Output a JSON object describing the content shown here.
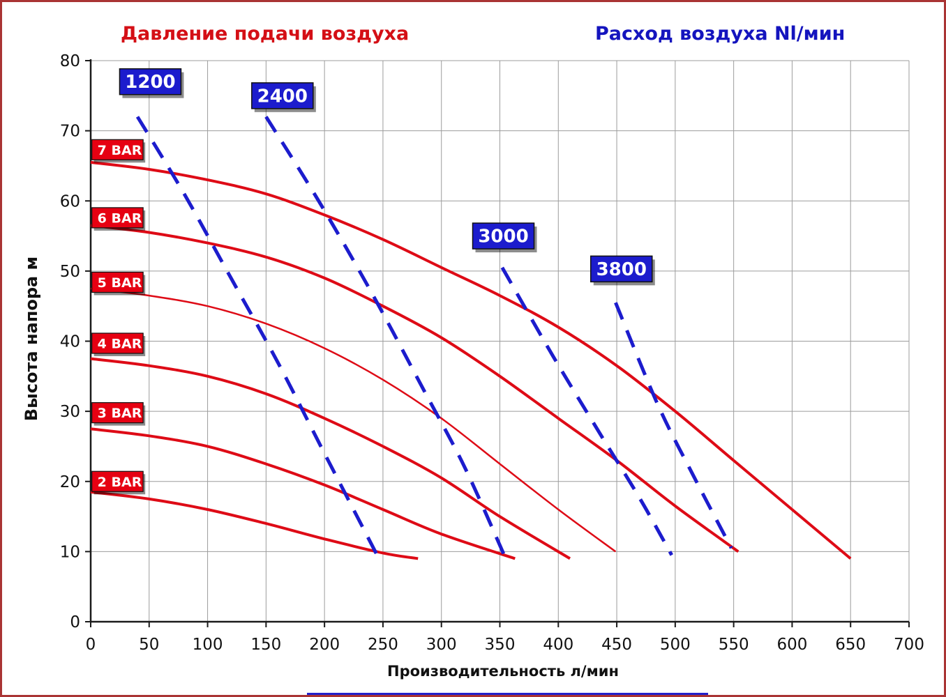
{
  "chart_data": {
    "type": "line",
    "title_left": "Давление подачи воздуха",
    "title_right": "Расход воздуха Nl/мин",
    "xlabel": "Производительность л/мин",
    "ylabel": "Высота напора м",
    "xlim": [
      0,
      700
    ],
    "ylim": [
      0,
      80
    ],
    "x_ticks": [
      0,
      50,
      100,
      150,
      200,
      250,
      300,
      350,
      400,
      450,
      500,
      550,
      600,
      650,
      700
    ],
    "y_ticks": [
      0,
      10,
      20,
      30,
      40,
      50,
      60,
      70,
      80
    ],
    "grid": true,
    "legend": "none",
    "colors": {
      "curve_red": "#de0b16",
      "curve_blue": "#1c1ccd",
      "pressure_label_bg": "#e60012",
      "flow_label_bg": "#1c1ccd",
      "label_text": "#ffffff",
      "grid": "#9c9c9c",
      "axis": "#1a1a1a",
      "title_red": "#d40f16",
      "title_blue": "#1414be"
    },
    "series": [
      {
        "name": "7 BAR",
        "group": "pressure",
        "style": "solid",
        "width": 4,
        "points": [
          [
            0,
            65.5
          ],
          [
            50,
            64.5
          ],
          [
            100,
            63
          ],
          [
            150,
            61
          ],
          [
            200,
            58
          ],
          [
            250,
            54.5
          ],
          [
            300,
            50.5
          ],
          [
            350,
            46.5
          ],
          [
            400,
            42
          ],
          [
            450,
            36.5
          ],
          [
            500,
            30
          ],
          [
            550,
            23
          ],
          [
            600,
            16
          ],
          [
            650,
            9
          ]
        ]
      },
      {
        "name": "6 BAR",
        "group": "pressure",
        "style": "solid",
        "width": 4,
        "points": [
          [
            0,
            56.5
          ],
          [
            50,
            55.5
          ],
          [
            100,
            54
          ],
          [
            150,
            52
          ],
          [
            200,
            49
          ],
          [
            250,
            45
          ],
          [
            300,
            40.5
          ],
          [
            350,
            35
          ],
          [
            400,
            29
          ],
          [
            450,
            23
          ],
          [
            500,
            16.5
          ],
          [
            554,
            10
          ]
        ]
      },
      {
        "name": "5 BAR",
        "group": "pressure",
        "style": "solid",
        "width": 2.5,
        "points": [
          [
            0,
            47.5
          ],
          [
            50,
            46.5
          ],
          [
            100,
            45
          ],
          [
            150,
            42.5
          ],
          [
            200,
            39
          ],
          [
            250,
            34.5
          ],
          [
            300,
            29
          ],
          [
            350,
            22.5
          ],
          [
            400,
            16
          ],
          [
            449,
            10
          ]
        ]
      },
      {
        "name": "4 BAR",
        "group": "pressure",
        "style": "solid",
        "width": 4,
        "points": [
          [
            0,
            37.5
          ],
          [
            50,
            36.5
          ],
          [
            100,
            35
          ],
          [
            150,
            32.5
          ],
          [
            200,
            29
          ],
          [
            250,
            25
          ],
          [
            300,
            20.5
          ],
          [
            350,
            15
          ],
          [
            410,
            9
          ]
        ]
      },
      {
        "name": "3 BAR",
        "group": "pressure",
        "style": "solid",
        "width": 4,
        "points": [
          [
            0,
            27.5
          ],
          [
            50,
            26.5
          ],
          [
            100,
            25
          ],
          [
            150,
            22.5
          ],
          [
            200,
            19.5
          ],
          [
            250,
            16
          ],
          [
            300,
            12.5
          ],
          [
            363,
            9
          ]
        ]
      },
      {
        "name": "2 BAR",
        "group": "pressure",
        "style": "solid",
        "width": 4,
        "points": [
          [
            0,
            18.5
          ],
          [
            50,
            17.5
          ],
          [
            100,
            16
          ],
          [
            150,
            14
          ],
          [
            200,
            11.8
          ],
          [
            250,
            9.8
          ],
          [
            280,
            9
          ]
        ]
      },
      {
        "name": "1200",
        "group": "air-flow",
        "style": "dashed",
        "width": 5,
        "points": [
          [
            40,
            72
          ],
          [
            80,
            61
          ],
          [
            120,
            49
          ],
          [
            160,
            37
          ],
          [
            200,
            24
          ],
          [
            245,
            9.5
          ]
        ]
      },
      {
        "name": "2400",
        "group": "air-flow",
        "style": "dashed",
        "width": 5,
        "points": [
          [
            150,
            72
          ],
          [
            195,
            60
          ],
          [
            240,
            47
          ],
          [
            285,
            33
          ],
          [
            320,
            22
          ],
          [
            355,
            9
          ]
        ]
      },
      {
        "name": "3000",
        "group": "air-flow",
        "style": "dashed",
        "width": 5,
        "points": [
          [
            352,
            50.5
          ],
          [
            395,
            38
          ],
          [
            435,
            27
          ],
          [
            470,
            17.5
          ],
          [
            497,
            9.5
          ]
        ]
      },
      {
        "name": "3800",
        "group": "air-flow",
        "style": "dashed",
        "width": 5,
        "points": [
          [
            449,
            45.5
          ],
          [
            485,
            31
          ],
          [
            515,
            21
          ],
          [
            548,
            10.5
          ]
        ]
      }
    ],
    "curve_labels": [
      {
        "text": "7 BAR",
        "type": "pressure",
        "x": 1,
        "y": 67.3
      },
      {
        "text": "6 BAR",
        "type": "pressure",
        "x": 1,
        "y": 57.6
      },
      {
        "text": "5 BAR",
        "type": "pressure",
        "x": 1,
        "y": 48.4
      },
      {
        "text": "4 BAR",
        "type": "pressure",
        "x": 1,
        "y": 39.7
      },
      {
        "text": "3 BAR",
        "type": "pressure",
        "x": 1,
        "y": 29.8
      },
      {
        "text": "2 BAR",
        "type": "pressure",
        "x": 1,
        "y": 20.0
      },
      {
        "text": "1200",
        "type": "flow",
        "x": 51,
        "y": 77
      },
      {
        "text": "2400",
        "type": "flow",
        "x": 164,
        "y": 75
      },
      {
        "text": "3000",
        "type": "flow",
        "x": 353,
        "y": 55
      },
      {
        "text": "3800",
        "type": "flow",
        "x": 454,
        "y": 50.3
      }
    ]
  }
}
